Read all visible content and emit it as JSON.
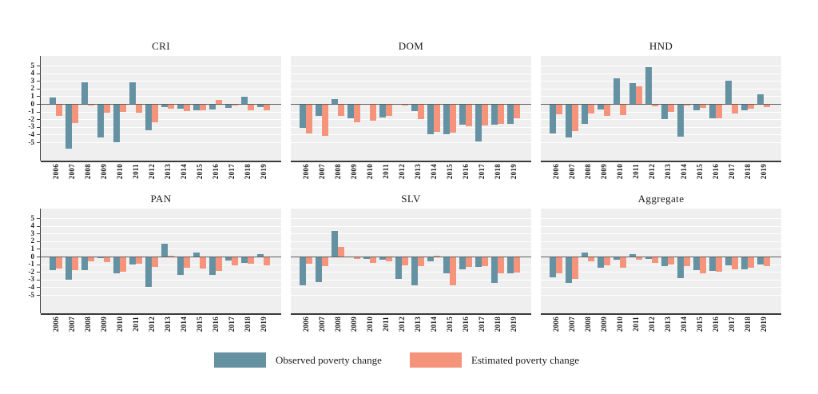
{
  "figure": {
    "legend": {
      "observed_label": "Observed poverty change",
      "estimated_label": "Estimated poverty change"
    },
    "colors": {
      "observed": "#6592a3",
      "estimated": "#f6947b",
      "plot_bg": "#efeff0",
      "axis": "#3a3a3a",
      "zero_line": "#5f5f5f"
    }
  },
  "chart_data": {
    "type": "bar",
    "title": "",
    "xlabel": "",
    "ylabel": "",
    "categories": [
      "2006",
      "2007",
      "2008",
      "2009",
      "2010",
      "2011",
      "2012",
      "2013",
      "2014",
      "2015",
      "2016",
      "2017",
      "2018",
      "2019"
    ],
    "y_ticks": [
      "5",
      "4",
      "3",
      "2",
      "1",
      "0",
      "-1",
      "-2",
      "-3",
      "-4",
      "-5"
    ],
    "ylim": [
      -5,
      5
    ],
    "grid": true,
    "legend_position": "bottom",
    "series_names": [
      "Observed poverty change",
      "Estimated poverty change"
    ],
    "panels": [
      {
        "title": "CRI",
        "series": [
          {
            "name": "Observed poverty change",
            "values": [
              0.8,
              -5.8,
              2.8,
              -4.4,
              -5.0,
              2.8,
              -3.4,
              -0.4,
              -0.6,
              -0.8,
              -0.7,
              -0.5,
              0.9,
              -0.4
            ]
          },
          {
            "name": "Estimated poverty change",
            "values": [
              -1.6,
              -2.5,
              -0.2,
              -1.1,
              -1.0,
              -1.1,
              -2.4,
              -0.6,
              -0.9,
              -0.8,
              0.5,
              -0.2,
              -0.8,
              -0.8
            ]
          }
        ]
      },
      {
        "title": "DOM",
        "series": [
          {
            "name": "Observed poverty change",
            "values": [
              -3.1,
              -1.6,
              0.6,
              -1.9,
              -0.1,
              -1.8,
              -0.1,
              -0.9,
              -4.0,
              -4.0,
              -2.7,
              -4.9,
              -2.7,
              -2.6
            ]
          },
          {
            "name": "Estimated poverty change",
            "values": [
              -3.9,
              -4.2,
              -1.6,
              -2.4,
              -2.2,
              -1.6,
              -0.2,
              -2.0,
              -3.6,
              -3.7,
              -2.9,
              -2.8,
              -2.6,
              -1.9
            ]
          }
        ]
      },
      {
        "title": "HND",
        "series": [
          {
            "name": "Observed poverty change",
            "values": [
              -3.9,
              -4.4,
              -2.6,
              -0.7,
              3.3,
              2.7,
              4.8,
              -2.0,
              -4.3,
              -0.8,
              -1.9,
              3.0,
              -0.8,
              1.3
            ]
          },
          {
            "name": "Estimated poverty change",
            "values": [
              -1.4,
              -3.5,
              -1.2,
              -1.6,
              -1.5,
              2.3,
              -0.3,
              -1.0,
              -0.2,
              -0.5,
              -1.9,
              -1.3,
              -0.6,
              -0.4
            ]
          }
        ]
      },
      {
        "title": "PAN",
        "series": [
          {
            "name": "Observed poverty change",
            "values": [
              -1.8,
              -3.0,
              -1.8,
              -0.2,
              -2.2,
              -1.0,
              -4.0,
              1.7,
              -2.4,
              0.5,
              -2.4,
              -0.5,
              -0.8,
              0.3
            ]
          },
          {
            "name": "Estimated poverty change",
            "values": [
              -1.6,
              -1.8,
              -0.6,
              -0.7,
              -2.0,
              -0.9,
              -1.4,
              0.1,
              -1.5,
              -1.6,
              -1.9,
              -1.1,
              -0.9,
              -1.1
            ]
          }
        ]
      },
      {
        "title": "SLV",
        "series": [
          {
            "name": "Observed poverty change",
            "values": [
              -3.8,
              -3.3,
              3.3,
              -0.1,
              -0.3,
              -0.4,
              -2.9,
              -3.7,
              -0.6,
              -2.2,
              -1.7,
              -1.4,
              -3.4,
              -2.2
            ]
          },
          {
            "name": "Estimated poverty change",
            "values": [
              -0.9,
              -1.3,
              1.3,
              -0.3,
              -0.8,
              -0.6,
              -1.1,
              -1.3,
              0.1,
              -3.7,
              -1.4,
              -1.3,
              -2.2,
              -2.1
            ]
          }
        ]
      },
      {
        "title": "Aggregate",
        "series": [
          {
            "name": "Observed poverty change",
            "values": [
              -2.7,
              -3.4,
              0.5,
              -1.5,
              -0.4,
              0.3,
              -0.3,
              -1.3,
              -2.8,
              -1.8,
              -1.9,
              -1.1,
              -1.7,
              -1.0
            ]
          },
          {
            "name": "Estimated poverty change",
            "values": [
              -2.2,
              -2.9,
              -0.6,
              -1.1,
              -1.5,
              -0.4,
              -0.8,
              -1.0,
              -1.3,
              -2.2,
              -2.0,
              -1.7,
              -1.5,
              -1.2
            ]
          }
        ]
      }
    ]
  }
}
